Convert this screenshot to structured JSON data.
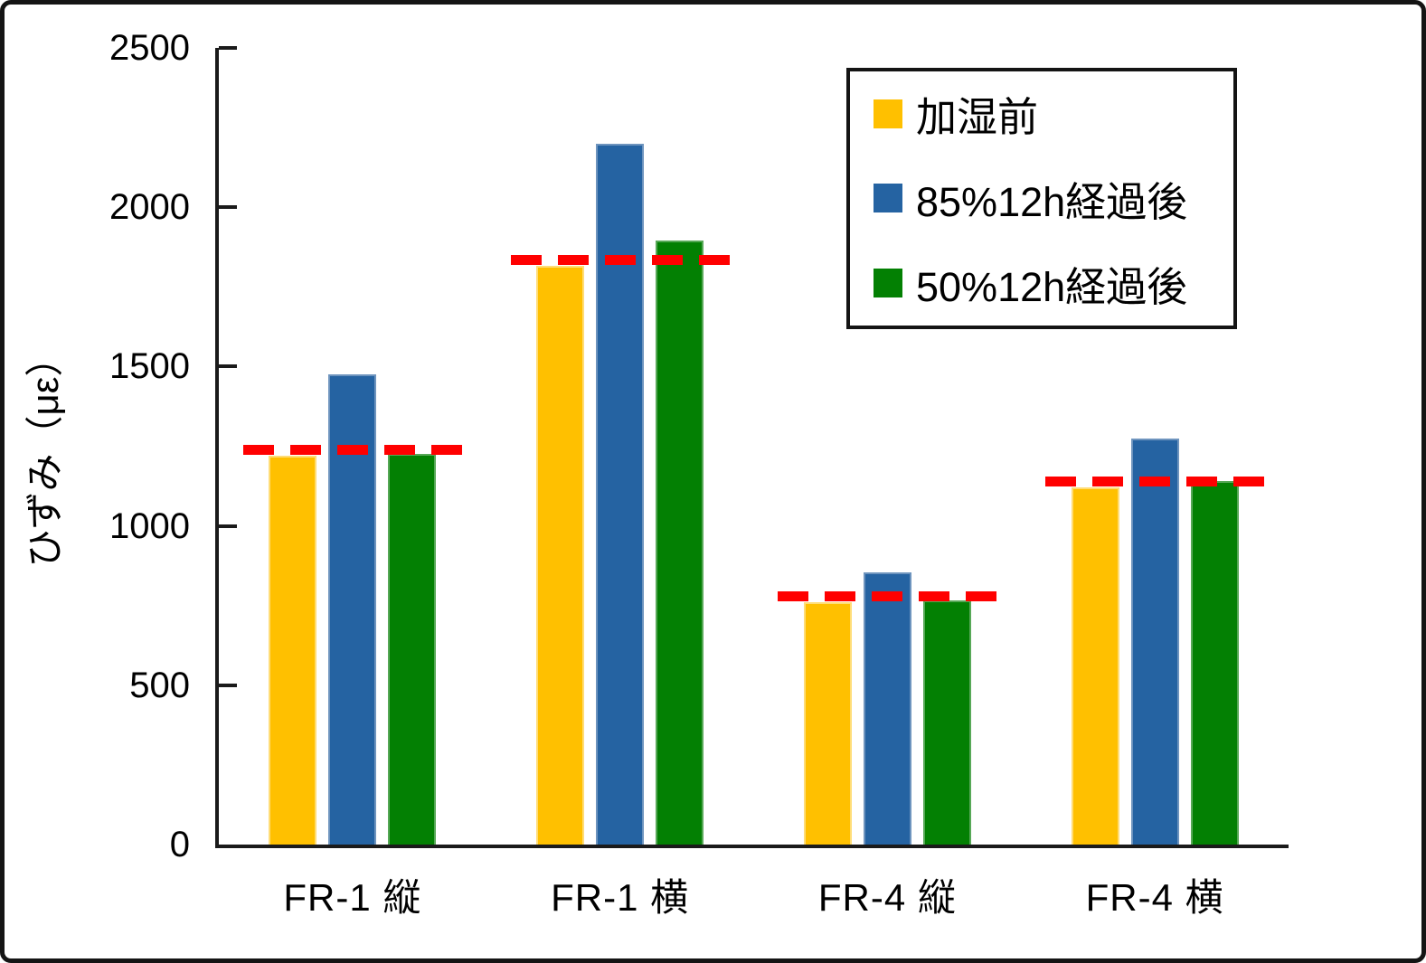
{
  "chart_data": {
    "type": "bar",
    "title": "",
    "ylabel": "ひずみ（με）",
    "xlabel": "",
    "ylim": [
      0,
      2500
    ],
    "y_ticks": [
      0,
      500,
      1000,
      1500,
      2000,
      2500
    ],
    "categories": [
      "FR-1 縦",
      "FR-1 横",
      "FR-4 縦",
      "FR-4 横"
    ],
    "series": [
      {
        "name": "加湿前",
        "color": "#FFC000",
        "edge_color": "#FFDD77",
        "values": [
          1220,
          1815,
          760,
          1120
        ]
      },
      {
        "name": "85%12h経過後",
        "color": "#2563A2",
        "edge_color": "#6E94BE",
        "values": [
          1475,
          2200,
          855,
          1275
        ]
      },
      {
        "name": "50%12h経過後",
        "color": "#038003",
        "edge_color": "#57A857",
        "values": [
          1225,
          1895,
          765,
          1140
        ]
      }
    ],
    "reference_lines": {
      "note": "red dashed line per category at 加湿前 level",
      "color": "#FF0000",
      "style": "dashed",
      "values": [
        1240,
        1835,
        780,
        1140
      ]
    },
    "legend_position": "top-right",
    "grid": false,
    "axis_color": "#1a1a1a"
  }
}
